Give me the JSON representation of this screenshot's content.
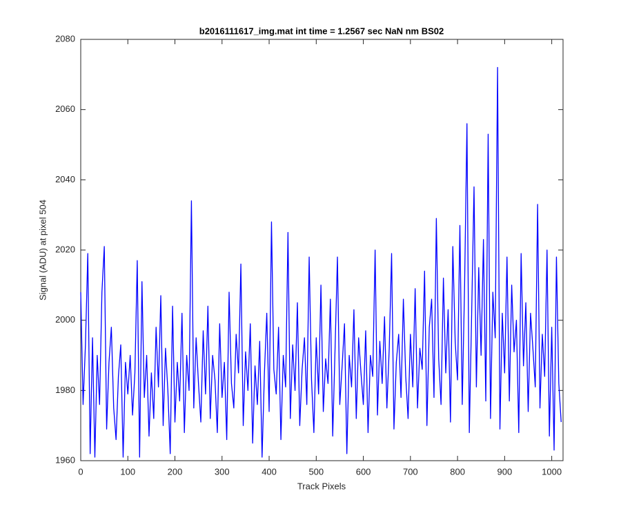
{
  "chart_data": {
    "type": "line",
    "title": "b2016111617_img.mat int time = 1.2567 sec  NaN nm BS02",
    "x_label": "Track Pixels",
    "y_label": "Signal (ADU) at pixel 504",
    "color": "#0000ff",
    "xlim": [
      0,
      1024
    ],
    "ylim": [
      1960,
      2080
    ],
    "xticks": [
      0,
      100,
      200,
      300,
      400,
      500,
      600,
      700,
      800,
      900,
      1000
    ],
    "yticks": [
      1960,
      1980,
      2000,
      2020,
      2040,
      2060,
      2080
    ],
    "grid": false,
    "x": [
      0,
      5,
      10,
      15,
      20,
      25,
      30,
      35,
      40,
      45,
      50,
      55,
      60,
      65,
      70,
      75,
      80,
      85,
      90,
      95,
      100,
      105,
      110,
      115,
      120,
      125,
      130,
      135,
      140,
      145,
      150,
      155,
      160,
      165,
      170,
      175,
      180,
      185,
      190,
      195,
      200,
      205,
      210,
      215,
      220,
      225,
      230,
      235,
      240,
      245,
      250,
      255,
      260,
      265,
      270,
      275,
      280,
      285,
      290,
      295,
      300,
      305,
      310,
      315,
      320,
      325,
      330,
      335,
      340,
      345,
      350,
      355,
      360,
      365,
      370,
      375,
      380,
      385,
      390,
      395,
      400,
      405,
      410,
      415,
      420,
      425,
      430,
      435,
      440,
      445,
      450,
      455,
      460,
      465,
      470,
      475,
      480,
      485,
      490,
      495,
      500,
      505,
      510,
      515,
      520,
      525,
      530,
      535,
      540,
      545,
      550,
      555,
      560,
      565,
      570,
      575,
      580,
      585,
      590,
      595,
      600,
      605,
      610,
      615,
      620,
      625,
      630,
      635,
      640,
      645,
      650,
      655,
      660,
      665,
      670,
      675,
      680,
      685,
      690,
      695,
      700,
      705,
      710,
      715,
      720,
      725,
      730,
      735,
      740,
      745,
      750,
      755,
      760,
      765,
      770,
      775,
      780,
      785,
      790,
      795,
      800,
      805,
      810,
      815,
      820,
      825,
      830,
      835,
      840,
      845,
      850,
      855,
      860,
      865,
      870,
      875,
      880,
      885,
      890,
      895,
      900,
      905,
      910,
      915,
      920,
      925,
      930,
      935,
      940,
      945,
      950,
      955,
      960,
      965,
      970,
      975,
      980,
      985,
      990,
      995,
      1000,
      1005,
      1010,
      1015,
      1020
    ],
    "values": [
      2008,
      1976,
      1993,
      2019,
      1962,
      1995,
      1961,
      1990,
      1976,
      2008,
      2021,
      1969,
      1988,
      1998,
      1975,
      1966,
      1984,
      1993,
      1961,
      1988,
      1979,
      1990,
      1973,
      1985,
      2017,
      1961,
      2011,
      1978,
      1990,
      1967,
      1985,
      1972,
      1998,
      1981,
      2007,
      1970,
      1992,
      1980,
      1962,
      2004,
      1971,
      1988,
      1977,
      2002,
      1968,
      1990,
      1980,
      2034,
      1975,
      1995,
      1982,
      1971,
      1997,
      1979,
      2004,
      1972,
      1990,
      1983,
      1968,
      1999,
      1978,
      1988,
      1966,
      2008,
      1982,
      1975,
      1996,
      1985,
      2016,
      1970,
      1991,
      1980,
      1999,
      1965,
      1987,
      1976,
      1994,
      1961,
      1985,
      2002,
      1974,
      2028,
      1986,
      1979,
      1998,
      1966,
      1990,
      1981,
      2025,
      1972,
      1993,
      1980,
      2005,
      1970,
      1986,
      1995,
      1976,
      2018,
      1983,
      1968,
      1995,
      1979,
      2010,
      1974,
      1989,
      1982,
      2006,
      1967,
      1992,
      2018,
      1976,
      1987,
      1999,
      1962,
      1990,
      1981,
      2003,
      1972,
      1995,
      1985,
      1976,
      1997,
      1968,
      1990,
      1984,
      2020,
      1973,
      1994,
      1982,
      2001,
      1975,
      1992,
      2019,
      1969,
      1988,
      1996,
      1978,
      2006,
      1984,
      1972,
      1996,
      1981,
      2009,
      1975,
      1992,
      1986,
      2014,
      1970,
      1998,
      2006,
      1978,
      2029,
      1989,
      1976,
      2012,
      1985,
      2003,
      1971,
      2021,
      1994,
      1983,
      2027,
      1976,
      2010,
      2056,
      1968,
      2002,
      2038,
      1981,
      2015,
      1990,
      2023,
      1977,
      2053,
      1972,
      2008,
      1995,
      2072,
      1969,
      2002,
      1985,
      2018,
      1977,
      2010,
      1991,
      2000,
      1968,
      2019,
      1987,
      2005,
      1974,
      2002,
      1992,
      1981,
      2033,
      1975,
      1996,
      1984,
      2020,
      1967,
      1998,
      1963,
      2018,
      1982,
      1971
    ]
  }
}
